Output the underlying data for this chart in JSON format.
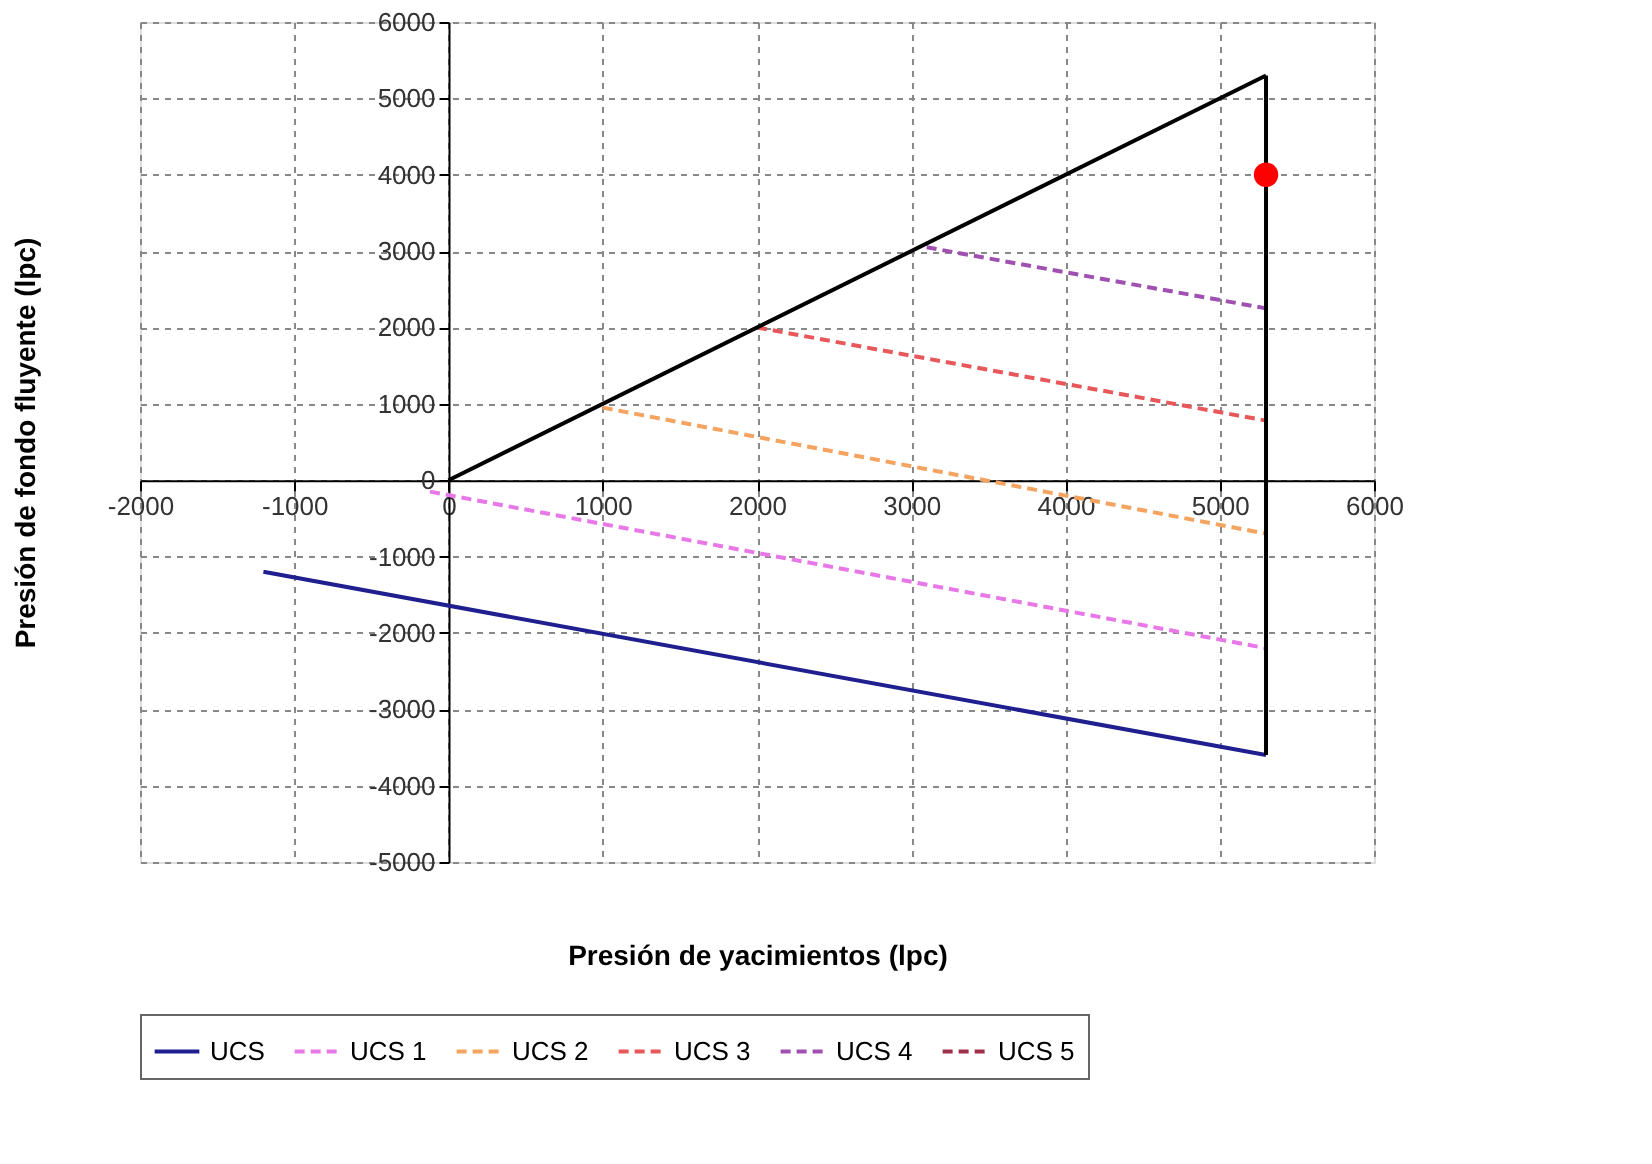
{
  "chart_data": {
    "type": "line",
    "xlabel": "Presión de yacimientos (lpc)",
    "ylabel": "Presión de fondo fluyente (lpc)",
    "xlim": [
      -2000,
      6000
    ],
    "ylim": [
      -5000,
      6000
    ],
    "xticks": [
      -2000,
      -1000,
      0,
      1000,
      2000,
      3000,
      4000,
      5000,
      6000
    ],
    "yticks": [
      -5000,
      -4000,
      -3000,
      -2000,
      -1000,
      0,
      1000,
      2000,
      3000,
      4000,
      5000,
      6000
    ],
    "grid": true,
    "legend": "bottom",
    "marker": "none",
    "series": [
      {
        "name": "UCS",
        "color": "#1f1f8f",
        "line_style": "solid",
        "x": [
          -1200,
          5300
        ],
        "values": [
          -1200,
          -3600
        ]
      },
      {
        "name": "UCS 1",
        "color": "#e878e8",
        "line_style": "dashed",
        "x": [
          -120,
          5300
        ],
        "values": [
          -150,
          -2200
        ]
      },
      {
        "name": "UCS 2",
        "color": "#f4a460",
        "line_style": "dashed",
        "x": [
          1000,
          5300
        ],
        "values": [
          950,
          -700
        ]
      },
      {
        "name": "UCS 3",
        "color": "#e8585a",
        "line_style": "dashed",
        "x": [
          2000,
          5300
        ],
        "values": [
          2000,
          780
        ]
      },
      {
        "name": "UCS 4",
        "color": "#a050b0",
        "line_style": "dashed",
        "x": [
          3100,
          5300
        ],
        "values": [
          3050,
          2250
        ]
      },
      {
        "name": "UCS 5",
        "color": "#a0304a",
        "line_style": "dashed",
        "x": [
          null
        ],
        "values": [
          null
        ]
      },
      {
        "color": "#000000",
        "line_style": "solid",
        "x": [
          0,
          5300
        ],
        "values": [
          0,
          5300
        ]
      },
      {
        "color": "#000000",
        "line_style": "solid",
        "x": [
          5300,
          5300
        ],
        "values": [
          5300,
          -3600
        ]
      },
      {
        "type": "scatter",
        "color": "#ff0000",
        "marker": "circle",
        "x": [
          5300
        ],
        "values": [
          4000
        ]
      }
    ]
  }
}
